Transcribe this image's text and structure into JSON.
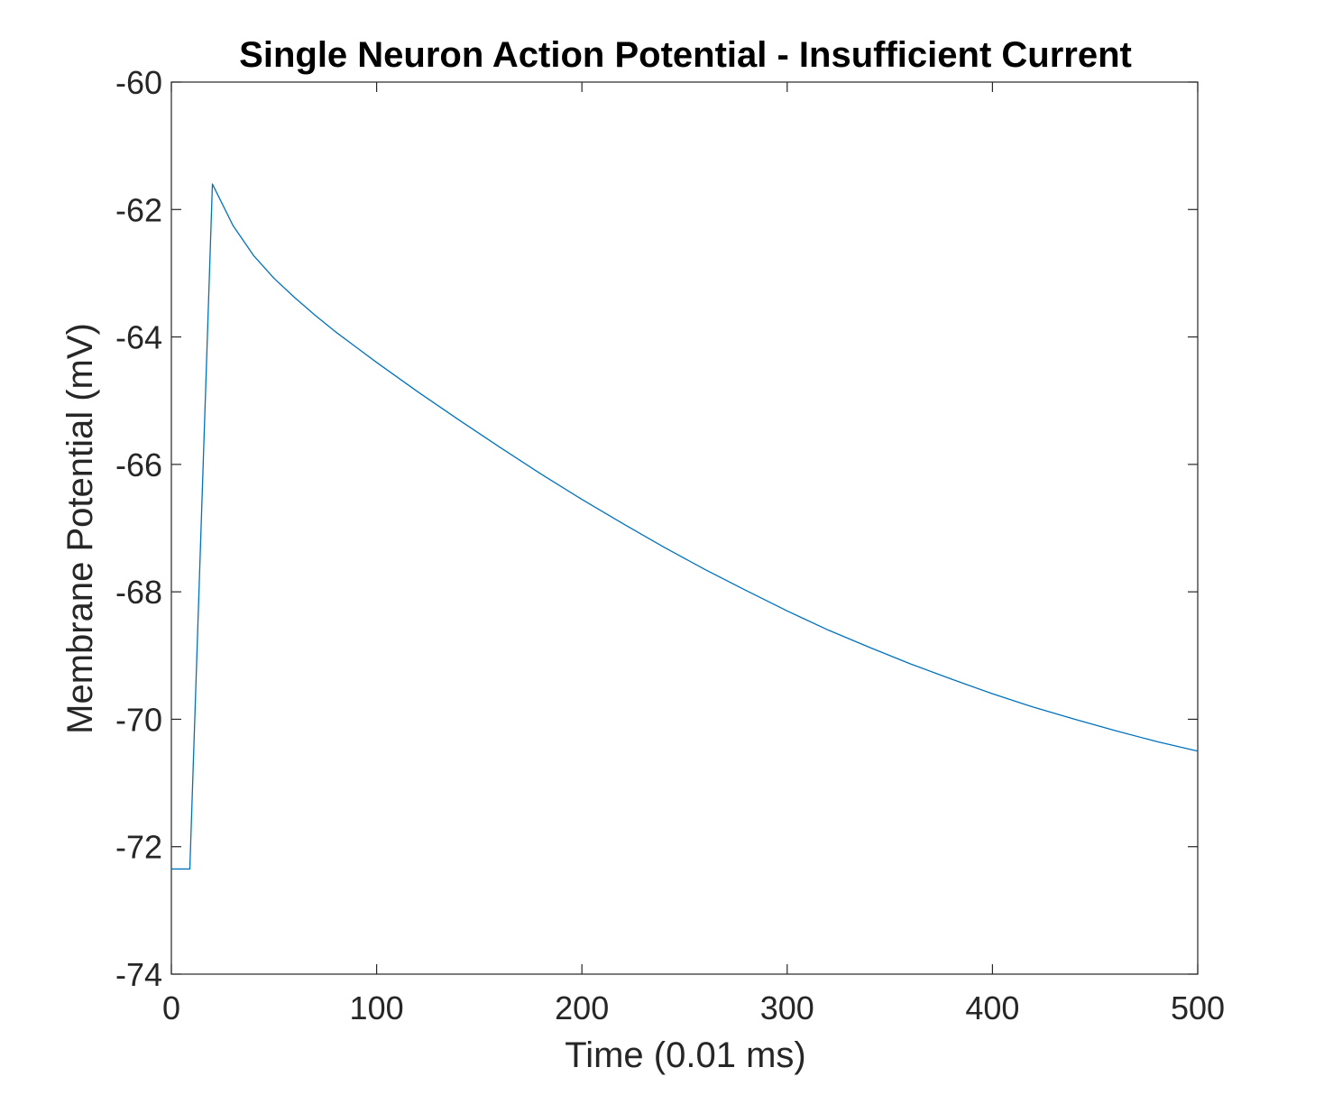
{
  "chart_data": {
    "type": "line",
    "title": "Single Neuron Action Potential - Insufficient Current",
    "xlabel": "Time (0.01 ms)",
    "ylabel": "Membrane Potential (mV)",
    "xlim": [
      0,
      500
    ],
    "ylim": [
      -74,
      -60
    ],
    "xticks": [
      0,
      100,
      200,
      300,
      400,
      500
    ],
    "yticks": [
      -74,
      -72,
      -70,
      -68,
      -66,
      -64,
      -62,
      -60
    ],
    "xtick_labels": [
      "0",
      "100",
      "200",
      "300",
      "400",
      "500"
    ],
    "ytick_labels": [
      "-74",
      "-72",
      "-70",
      "-68",
      "-66",
      "-64",
      "-62",
      "-60"
    ],
    "grid": false,
    "legend": "none",
    "series": [
      {
        "color": "#0072BD",
        "x": [
          0,
          9,
          20,
          30,
          40,
          50,
          60,
          70,
          80,
          90,
          100,
          120,
          140,
          160,
          180,
          200,
          220,
          240,
          260,
          280,
          300,
          320,
          340,
          360,
          380,
          400,
          420,
          440,
          460,
          480,
          500
        ],
        "y": [
          -72.35,
          -72.35,
          -61.6,
          -62.25,
          -62.72,
          -63.08,
          -63.38,
          -63.66,
          -63.92,
          -64.16,
          -64.4,
          -64.86,
          -65.3,
          -65.73,
          -66.15,
          -66.55,
          -66.93,
          -67.3,
          -67.65,
          -67.98,
          -68.3,
          -68.6,
          -68.87,
          -69.13,
          -69.37,
          -69.6,
          -69.81,
          -70.0,
          -70.18,
          -70.35,
          -70.5
        ]
      }
    ]
  }
}
